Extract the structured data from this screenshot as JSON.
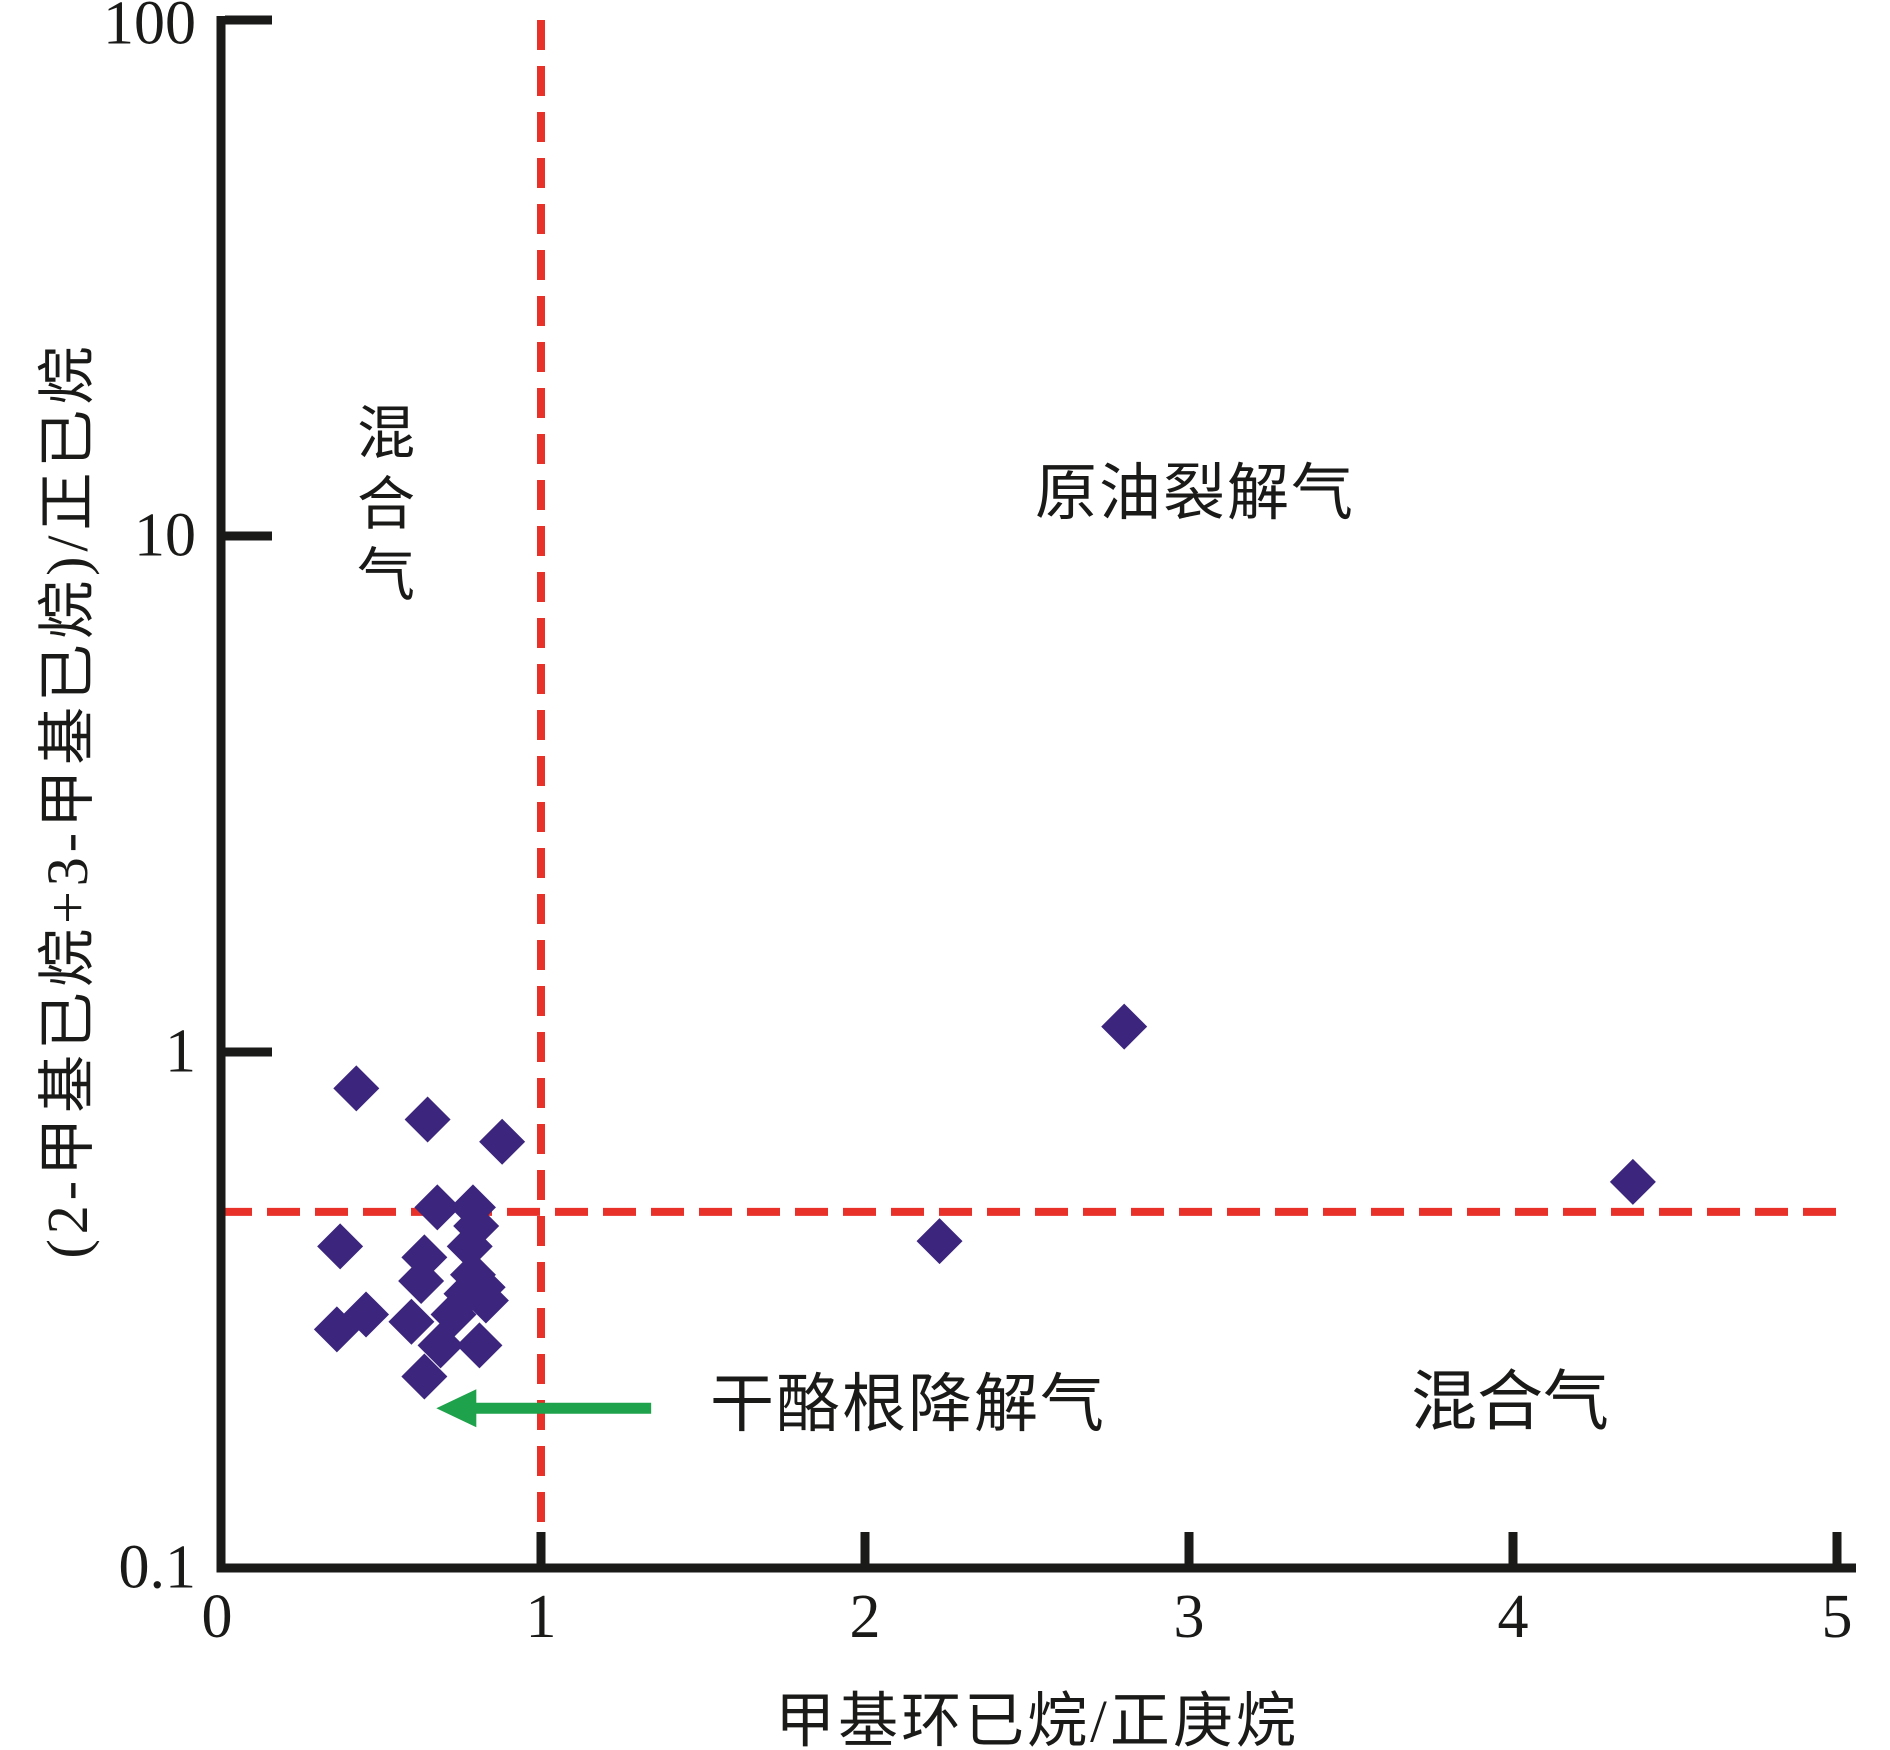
{
  "chart_data": {
    "type": "scatter",
    "title": "",
    "xlabel": "甲基环已烷/正庚烷",
    "ylabel": "(2-甲基已烷+3-甲基已烷)/正已烷",
    "x_axis": {
      "scale": "linear",
      "min": 0,
      "max": 5,
      "ticks": [
        0,
        1,
        2,
        3,
        4,
        5
      ]
    },
    "y_axis": {
      "scale": "log",
      "min": 0.1,
      "max": 100,
      "ticks": [
        {
          "value": 100,
          "label": "100"
        },
        {
          "value": 10,
          "label": "10"
        },
        {
          "value": 1,
          "label": "1"
        },
        {
          "value": 0.1,
          "label": "0.1"
        }
      ]
    },
    "grid": false,
    "legend": "none",
    "reference_lines": [
      {
        "orientation": "vertical",
        "x": 1.0,
        "style": "dashed",
        "color": "#E83129"
      },
      {
        "orientation": "horizontal",
        "y": 0.49,
        "style": "dashed",
        "color": "#E83129"
      }
    ],
    "regions": [
      {
        "label": "混合气",
        "position": "upper-left",
        "text_orientation": "vertical"
      },
      {
        "label": "原油裂解气",
        "position": "upper-right",
        "text_orientation": "horizontal"
      },
      {
        "label": "干酪根降解气",
        "position": "lower-center",
        "text_orientation": "horizontal"
      },
      {
        "label": "混合气",
        "position": "lower-right",
        "text_orientation": "horizontal"
      }
    ],
    "annotation_arrow": {
      "color": "#1EA24B",
      "from": [
        1.34,
        0.204
      ],
      "to": [
        0.68,
        0.204
      ]
    },
    "series": [
      {
        "marker": "diamond",
        "color": "#3C267D",
        "points": [
          [
            0.43,
            0.85
          ],
          [
            0.65,
            0.74
          ],
          [
            0.88,
            0.67
          ],
          [
            0.68,
            0.5
          ],
          [
            0.79,
            0.5
          ],
          [
            0.8,
            0.46
          ],
          [
            0.38,
            0.42
          ],
          [
            0.64,
            0.4
          ],
          [
            0.78,
            0.42
          ],
          [
            0.79,
            0.37
          ],
          [
            0.63,
            0.36
          ],
          [
            0.82,
            0.35
          ],
          [
            0.77,
            0.34
          ],
          [
            0.37,
            0.29
          ],
          [
            0.46,
            0.31
          ],
          [
            0.6,
            0.3
          ],
          [
            0.73,
            0.31
          ],
          [
            0.83,
            0.33
          ],
          [
            0.69,
            0.27
          ],
          [
            0.81,
            0.27
          ],
          [
            0.64,
            0.235
          ],
          [
            2.23,
            0.43
          ],
          [
            2.8,
            1.12
          ],
          [
            4.37,
            0.56
          ]
        ]
      }
    ],
    "axis_color": "#1A1A18"
  }
}
